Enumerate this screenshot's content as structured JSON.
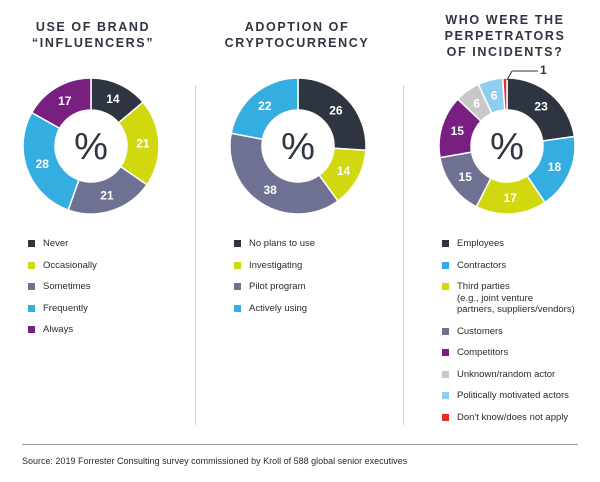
{
  "charts": [
    {
      "title_lines": [
        "USE OF BRAND",
        "“INFLUENCERS”"
      ],
      "center_text": "%",
      "chart_data": {
        "type": "pie",
        "title": "USE OF BRAND “INFLUENCERS”",
        "unit": "%",
        "categories": [
          "Never",
          "Occasionally",
          "Sometimes",
          "Frequently",
          "Always"
        ],
        "values": [
          14,
          21,
          21,
          28,
          17
        ],
        "colors": [
          "#2e3540",
          "#d1d80f",
          "#6e7191",
          "#34aee0",
          "#7a1f82"
        ]
      }
    },
    {
      "title_lines": [
        "ADOPTION OF",
        "CRYPTOCURRENCY"
      ],
      "center_text": "%",
      "chart_data": {
        "type": "pie",
        "title": "ADOPTION OF CRYPTOCURRENCY",
        "unit": "%",
        "categories": [
          "No plans to use",
          "Investigating",
          "Pilot program",
          "Actively using"
        ],
        "values": [
          26,
          14,
          38,
          22
        ],
        "colors": [
          "#2e3540",
          "#d1d80f",
          "#6e7191",
          "#34aee0"
        ]
      }
    },
    {
      "title_lines": [
        "WHO WERE THE",
        "PERPETRATORS",
        "OF INCIDENTS?"
      ],
      "center_text": "%",
      "chart_data": {
        "type": "pie",
        "title": "WHO WERE THE PERPETRATORS OF INCIDENTS?",
        "unit": "%",
        "categories": [
          "Employees",
          "Contractors",
          "Third parties\n(e.g., joint venture\npartners, suppliers/vendors)",
          "Customers",
          "Competitors",
          "Unknown/random actor",
          "Politically motivated actors",
          "Don't know/does not apply"
        ],
        "values": [
          23,
          18,
          17,
          15,
          15,
          6,
          6,
          1
        ],
        "colors": [
          "#2e3540",
          "#34aee0",
          "#d1d80f",
          "#6e7191",
          "#7a1f82",
          "#c8c8c8",
          "#8ecfee",
          "#e0302a"
        ]
      }
    }
  ],
  "source": "Source: 2019 Forrester Consulting survey commissioned by Kroll of 588 global senior executives"
}
